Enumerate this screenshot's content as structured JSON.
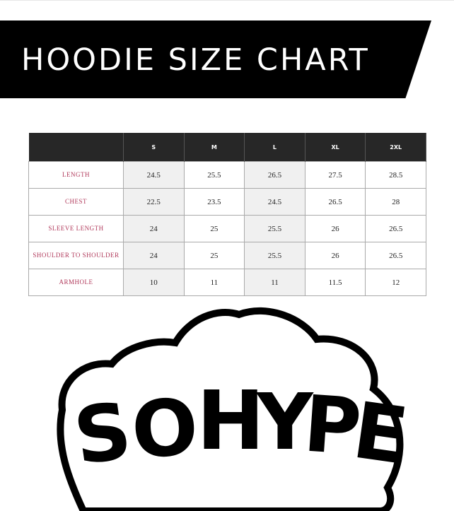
{
  "banner": {
    "title": "HOODIE SIZE CHART"
  },
  "size_table": {
    "headers": [
      "",
      "S",
      "M",
      "L",
      "XL",
      "2XL"
    ],
    "rows": [
      {
        "label": "LENGTH",
        "values": [
          "24.5",
          "25.5",
          "26.5",
          "27.5",
          "28.5"
        ]
      },
      {
        "label": "CHEST",
        "values": [
          "22.5",
          "23.5",
          "24.5",
          "26.5",
          "28"
        ]
      },
      {
        "label": "SLEEVE LENGTH",
        "values": [
          "24",
          "25",
          "25.5",
          "26",
          "26.5"
        ]
      },
      {
        "label": "SHOULDER TO SHOULDER",
        "values": [
          "24",
          "25",
          "25.5",
          "26",
          "26.5"
        ]
      },
      {
        "label": "ARMHOLE",
        "values": [
          "10",
          "11",
          "11",
          "11.5",
          "12"
        ]
      }
    ]
  },
  "logo": {
    "text": "SO HYPE"
  },
  "colors": {
    "header_bg": "#272727",
    "label_text": "#b0385a",
    "shaded_column": "#f0f0f0"
  }
}
